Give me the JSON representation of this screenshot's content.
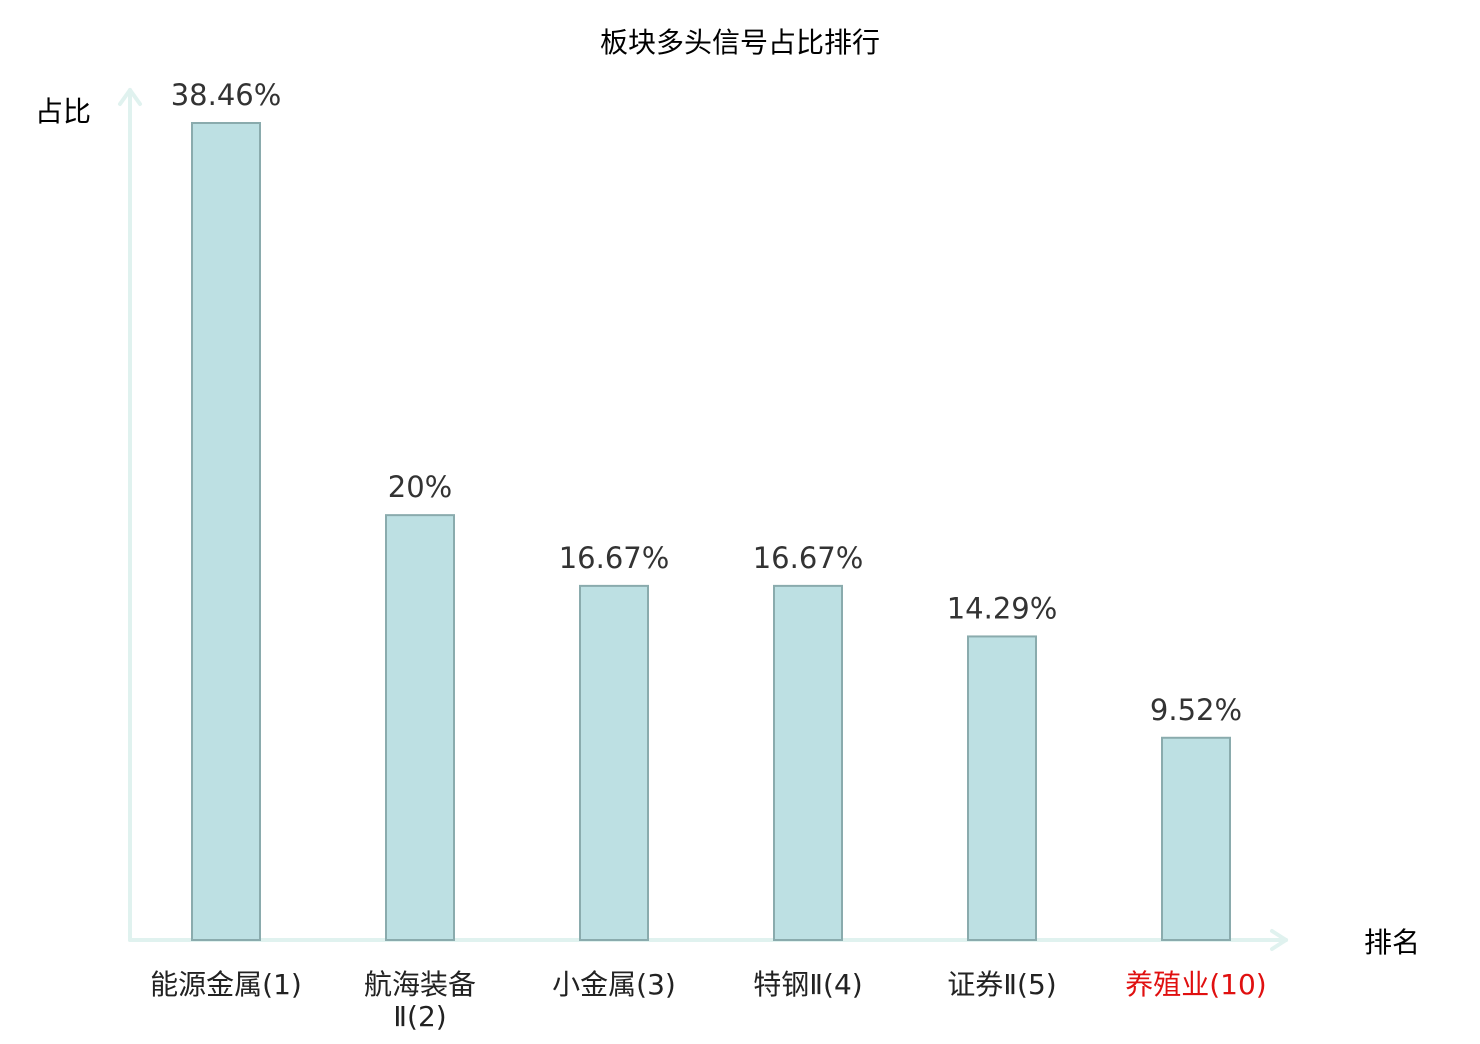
{
  "chart_data": {
    "type": "bar",
    "title": "板块多头信号占比排行",
    "ylabel": "占比",
    "xlabel": "排名",
    "categories": [
      [
        "能源金属(1)"
      ],
      [
        "航海装备",
        "Ⅱ(2)"
      ],
      [
        "小金属(3)"
      ],
      [
        "特钢Ⅱ(4)"
      ],
      [
        "证券Ⅱ(5)"
      ],
      [
        "养殖业(10)"
      ]
    ],
    "values": [
      38.46,
      20,
      16.67,
      16.67,
      14.29,
      9.52
    ],
    "value_labels": [
      "38.46%",
      "20%",
      "16.67%",
      "16.67%",
      "14.29%",
      "9.52%"
    ],
    "highlight_index": 5,
    "ylim": [
      0,
      40
    ],
    "grid": false,
    "legend": "none"
  },
  "colors": {
    "bar_fill": "#bde0e3",
    "bar_stroke": "#8aabad",
    "axis": "#e0f2ef",
    "text": "#222222",
    "value_label": "#333333",
    "highlight_text": "#e01010"
  }
}
